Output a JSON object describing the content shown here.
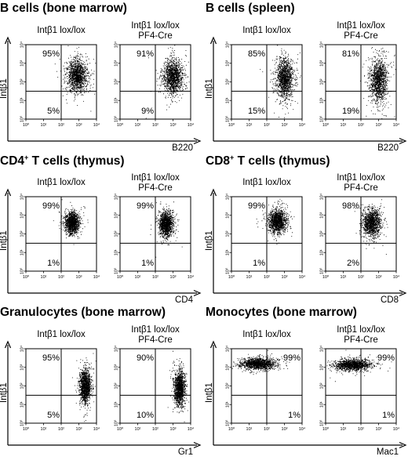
{
  "chart_data": [
    {
      "type": "scatter",
      "title": "B cells (bone marrow)",
      "ylabel": "Intβ1",
      "xlabel": "B220",
      "plots": [
        {
          "condition": [
            "Intβ1 lox/lox",
            ""
          ],
          "upper_pct": "95%",
          "lower_pct": "5%",
          "cluster": {
            "x": 2.9,
            "y": 2.35,
            "sx": 0.28,
            "sy": 0.42
          }
        },
        {
          "condition": [
            "Intβ1 lox/lox",
            "PF4-Cre"
          ],
          "upper_pct": "91%",
          "lower_pct": "9%",
          "cluster": {
            "x": 3.0,
            "y": 2.3,
            "sx": 0.28,
            "sy": 0.45
          }
        }
      ]
    },
    {
      "type": "scatter",
      "title": "B cells (spleen)",
      "ylabel": "Intβ1",
      "xlabel": "B220",
      "plots": [
        {
          "condition": [
            "Intβ1 lox/lox",
            ""
          ],
          "upper_pct": "85%",
          "lower_pct": "15%",
          "cluster": {
            "x": 3.0,
            "y": 2.2,
            "sx": 0.25,
            "sy": 0.55
          }
        },
        {
          "condition": [
            "Intβ1 lox/lox",
            "PF4-Cre"
          ],
          "upper_pct": "81%",
          "lower_pct": "19%",
          "cluster": {
            "x": 3.0,
            "y": 2.1,
            "sx": 0.25,
            "sy": 0.55
          }
        }
      ]
    },
    {
      "type": "scatter",
      "title": "CD4+ T cells (thymus)",
      "title_main": "CD4",
      "title_sup": "+",
      "title_rest": " T cells (thymus)",
      "ylabel": "Intβ1",
      "xlabel": "CD4",
      "plots": [
        {
          "condition": [
            "Intβ1 lox/lox",
            ""
          ],
          "upper_pct": "99%",
          "lower_pct": "1%",
          "cluster": {
            "x": 2.6,
            "y": 2.6,
            "sx": 0.2,
            "sy": 0.3
          }
        },
        {
          "condition": [
            "Intβ1 lox/lox",
            "PF4-Cre"
          ],
          "upper_pct": "99%",
          "lower_pct": "1%",
          "cluster": {
            "x": 2.6,
            "y": 2.55,
            "sx": 0.2,
            "sy": 0.33
          }
        }
      ]
    },
    {
      "type": "scatter",
      "title": "CD8+ T cells (thymus)",
      "title_main": "CD8",
      "title_sup": "+",
      "title_rest": " T cells (thymus)",
      "ylabel": "Intβ1",
      "xlabel": "CD8",
      "plots": [
        {
          "condition": [
            "Intβ1 lox/lox",
            ""
          ],
          "upper_pct": "99%",
          "lower_pct": "1%",
          "cluster": {
            "x": 2.6,
            "y": 2.7,
            "sx": 0.25,
            "sy": 0.32
          }
        },
        {
          "condition": [
            "Intβ1 lox/lox",
            "PF4-Cre"
          ],
          "upper_pct": "98%",
          "lower_pct": "2%",
          "cluster": {
            "x": 2.6,
            "y": 2.6,
            "sx": 0.25,
            "sy": 0.35
          }
        }
      ]
    },
    {
      "type": "scatter",
      "title": "Granulocytes (bone marrow)",
      "ylabel": "Intβ1",
      "xlabel": "Gr1",
      "plots": [
        {
          "condition": [
            "Intβ1 lox/lox",
            ""
          ],
          "upper_pct": "95%",
          "lower_pct": "5%",
          "cluster": {
            "x": 3.35,
            "y": 2.0,
            "sx": 0.15,
            "sy": 0.45
          }
        },
        {
          "condition": [
            "Intβ1 lox/lox",
            "PF4-Cre"
          ],
          "upper_pct": "90%",
          "lower_pct": "10%",
          "cluster": {
            "x": 3.35,
            "y": 1.9,
            "sx": 0.15,
            "sy": 0.45
          }
        }
      ]
    },
    {
      "type": "scatter",
      "title": "Monocytes (bone marrow)",
      "ylabel": "Intβ1",
      "xlabel": "Mac1",
      "plots": [
        {
          "condition": [
            "Intβ1 lox/lox",
            ""
          ],
          "upper_pct": "99%",
          "lower_pct": "1%",
          "cluster": {
            "x": 1.5,
            "y": 3.2,
            "sx": 0.5,
            "sy": 0.15
          }
        },
        {
          "condition": [
            "Intβ1 lox/lox",
            "PF4-Cre"
          ],
          "upper_pct": "99%",
          "lower_pct": "1%",
          "cluster": {
            "x": 1.5,
            "y": 3.15,
            "sx": 0.5,
            "sy": 0.15
          }
        }
      ]
    }
  ],
  "axis": {
    "range": [
      0,
      4
    ],
    "ticks": [
      "10⁰",
      "10¹",
      "10²",
      "10³",
      "10⁴"
    ],
    "scale": "log",
    "gate_x": 2.0,
    "gate_y": 1.5
  },
  "colors": {
    "ink": "#000000",
    "background": "#ffffff"
  }
}
